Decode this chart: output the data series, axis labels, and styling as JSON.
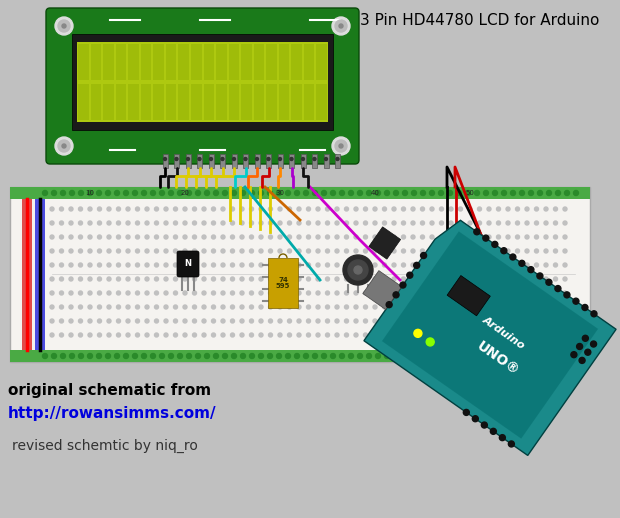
{
  "bg_color": "#c0c0c0",
  "title_text": "3 Pin HD44780 LCD for Arduino",
  "title_fontsize": 11,
  "title_color": "#000000",
  "bottom_text1": "original schematic from",
  "bottom_text2": "http://rowansimms.com/",
  "bottom_text3": "revised schemtic by niq_ro",
  "bottom_text1_color": "#000000",
  "bottom_text2_color": "#0000dd",
  "bottom_text3_color": "#333333",
  "lcd_outer_color": "#1a7a1a",
  "lcd_screen_color": "#aec910",
  "lcd_screen_dark": "#8aaa00",
  "lcd_black": "#111111",
  "arduino_body_color": "#1a8a8a",
  "arduino_dark": "#006666",
  "bb_color": "#f5f3f0",
  "bb_rail_red": "#cc2222",
  "bb_rail_blue": "#2222cc",
  "bb_hole_color": "#b0b0b0",
  "bb_green_strip": "#4aaa44"
}
